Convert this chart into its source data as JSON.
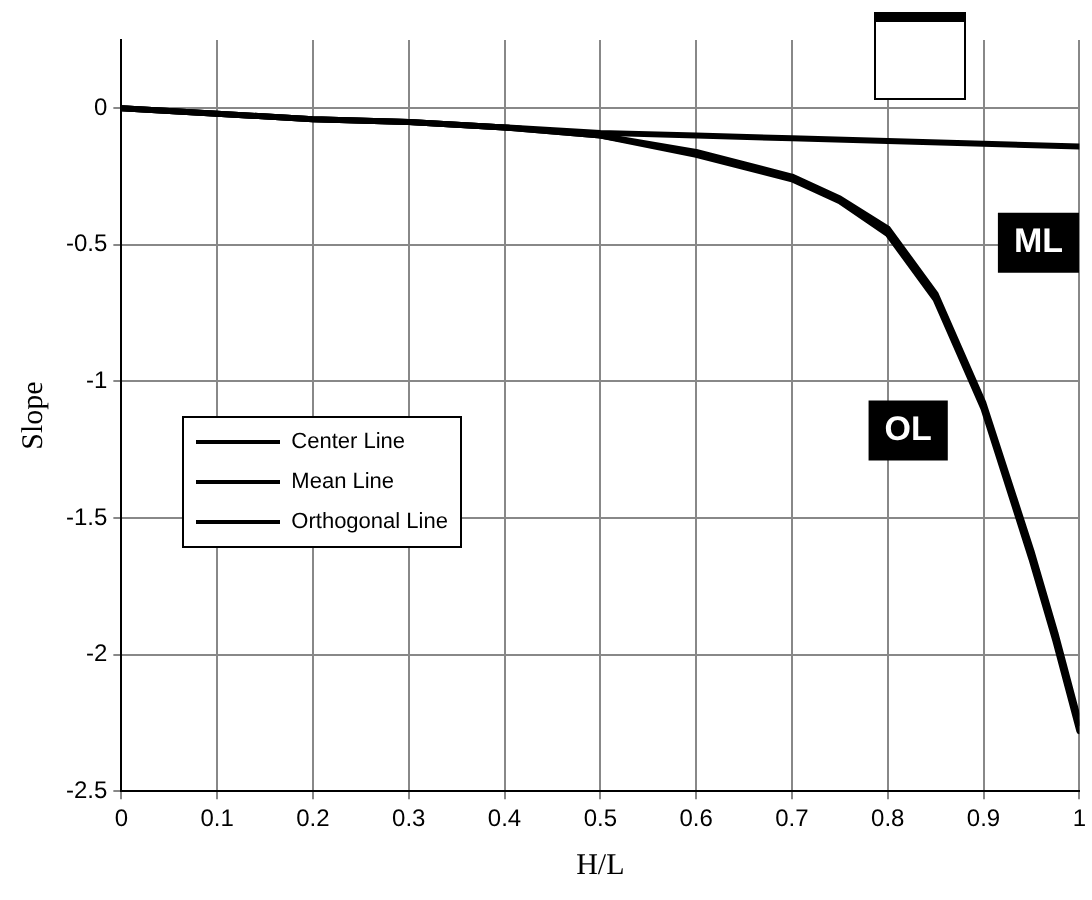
{
  "chart_data": {
    "type": "line",
    "xlabel": "H/L",
    "ylabel": "Slope",
    "xlim": [
      0,
      1
    ],
    "ylim": [
      -2.5,
      0.25
    ],
    "xticks": [
      0,
      0.1,
      0.2,
      0.3,
      0.4,
      0.5,
      0.6,
      0.7,
      0.8,
      0.9,
      1
    ],
    "yticks": [
      -2.5,
      -2,
      -1.5,
      -1,
      -0.5,
      0
    ],
    "grid": true,
    "legend": "left",
    "line_style": "solid",
    "marker": "none",
    "series": [
      {
        "name": "Center Line",
        "color": "#000000",
        "x": [
          0,
          0.1,
          0.2,
          0.3,
          0.4,
          0.5,
          0.6,
          0.7,
          0.75,
          0.8,
          0.85,
          0.9,
          0.95,
          0.975,
          1
        ],
        "values": [
          0,
          -0.02,
          -0.04,
          -0.05,
          -0.07,
          -0.1,
          -0.16,
          -0.25,
          -0.33,
          -0.44,
          -0.68,
          -1.08,
          -1.62,
          -1.92,
          -2.25
        ]
      },
      {
        "name": "Mean Line",
        "color": "#000000",
        "x": [
          0,
          0.1,
          0.2,
          0.3,
          0.4,
          0.5,
          0.6,
          0.7,
          0.8,
          0.9,
          1
        ],
        "values": [
          0,
          -0.02,
          -0.04,
          -0.05,
          -0.07,
          -0.09,
          -0.1,
          -0.11,
          -0.12,
          -0.13,
          -0.14
        ]
      },
      {
        "name": "Orthogonal Line",
        "color": "#000000",
        "x": [
          0,
          0.1,
          0.2,
          0.3,
          0.4,
          0.5,
          0.6,
          0.7,
          0.75,
          0.8,
          0.85,
          0.9,
          0.95,
          0.975,
          1
        ],
        "values": [
          0,
          -0.02,
          -0.04,
          -0.05,
          -0.07,
          -0.1,
          -0.17,
          -0.26,
          -0.34,
          -0.46,
          -0.7,
          -1.1,
          -1.65,
          -1.95,
          -2.28
        ]
      }
    ],
    "annotations": [
      "ML",
      "OL"
    ]
  }
}
